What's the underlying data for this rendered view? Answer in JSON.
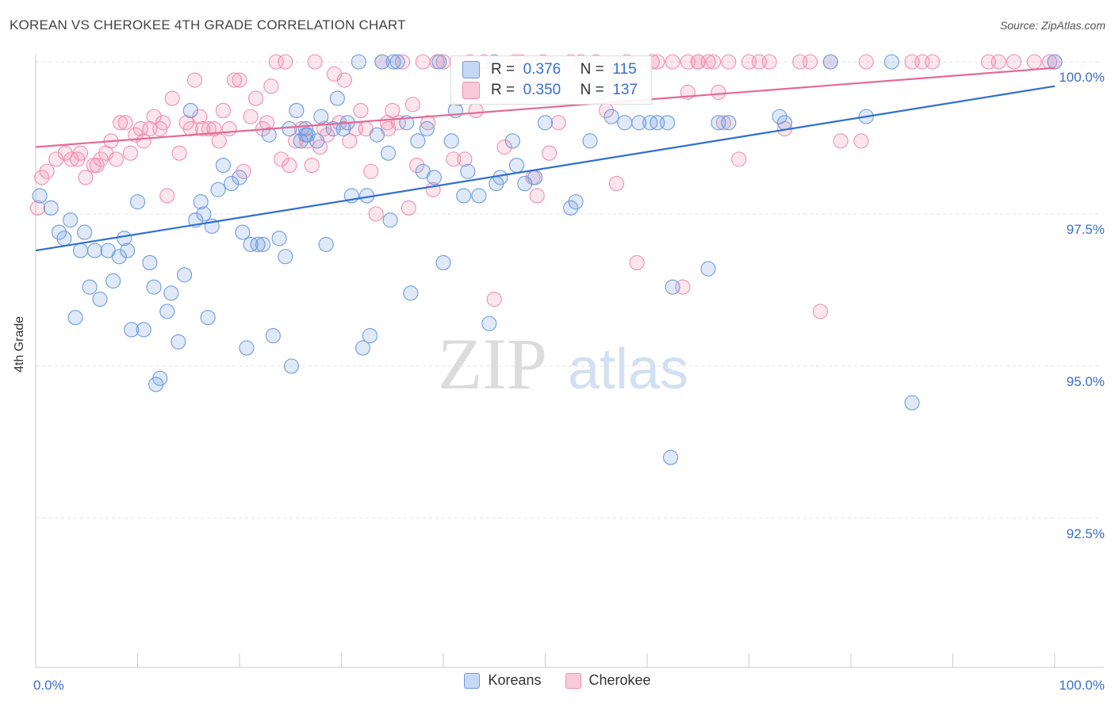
{
  "title": "KOREAN VS CHEROKEE 4TH GRADE CORRELATION CHART",
  "source": "Source: ZipAtlas.com",
  "watermark": {
    "zip": "ZIP",
    "atlas": "atlas"
  },
  "colors": {
    "koreans": "#6f9be0",
    "cherokee": "#f08fae",
    "koreans_line": "#2f6fd0",
    "cherokee_line": "#e36a93",
    "tick_label": "#3a6fd0"
  },
  "legend": {
    "items": [
      {
        "label": "Koreans"
      },
      {
        "label": "Cherokee"
      }
    ]
  },
  "stats": {
    "koreans": {
      "r_label": "R =",
      "r_value": "0.376",
      "n_label": "N =",
      "n_value": "115"
    },
    "cherokee": {
      "r_label": "R =",
      "r_value": "0.350",
      "n_label": "N =",
      "n_value": "137"
    }
  },
  "chart_data": {
    "type": "scatter",
    "title": "KOREAN VS CHEROKEE 4TH GRADE CORRELATION CHART",
    "xlabel": "",
    "ylabel": "4th Grade",
    "xlim": [
      0,
      100
    ],
    "ylim": [
      90.2,
      100.4
    ],
    "x_tick_labels": [
      "0.0%",
      "100.0%"
    ],
    "y_ticks": [
      {
        "value": 100.0,
        "label": "100.0%"
      },
      {
        "value": 97.5,
        "label": "97.5%"
      },
      {
        "value": 95.0,
        "label": "95.0%"
      },
      {
        "value": 92.5,
        "label": "92.5%"
      }
    ],
    "grid": true,
    "legend_position": "bottom-center",
    "series": [
      {
        "name": "Koreans",
        "trend": [
          [
            0,
            96.9
          ],
          [
            100,
            99.6
          ]
        ],
        "points": [
          [
            0.4,
            97.8
          ],
          [
            1.5,
            97.6
          ],
          [
            2.3,
            97.2
          ],
          [
            2.8,
            97.1
          ],
          [
            3.4,
            97.4
          ],
          [
            3.9,
            95.8
          ],
          [
            4.4,
            96.9
          ],
          [
            4.8,
            97.2
          ],
          [
            5.3,
            96.3
          ],
          [
            5.8,
            96.9
          ],
          [
            6.3,
            96.1
          ],
          [
            7.1,
            96.9
          ],
          [
            7.6,
            96.4
          ],
          [
            8.2,
            96.8
          ],
          [
            8.7,
            97.1
          ],
          [
            9.0,
            96.9
          ],
          [
            9.4,
            95.6
          ],
          [
            10.0,
            97.7
          ],
          [
            10.6,
            95.6
          ],
          [
            11.2,
            96.7
          ],
          [
            11.6,
            96.3
          ],
          [
            11.8,
            94.7
          ],
          [
            12.2,
            94.8
          ],
          [
            12.9,
            95.9
          ],
          [
            13.3,
            96.2
          ],
          [
            14.0,
            95.4
          ],
          [
            14.6,
            96.5
          ],
          [
            15.2,
            99.2
          ],
          [
            15.7,
            97.4
          ],
          [
            16.2,
            97.7
          ],
          [
            16.5,
            97.5
          ],
          [
            16.9,
            95.8
          ],
          [
            17.3,
            97.3
          ],
          [
            17.9,
            97.9
          ],
          [
            18.4,
            98.3
          ],
          [
            19.2,
            98.0
          ],
          [
            20.0,
            98.1
          ],
          [
            20.3,
            97.2
          ],
          [
            20.7,
            95.3
          ],
          [
            21.1,
            97.0
          ],
          [
            21.8,
            97.0
          ],
          [
            22.3,
            97.0
          ],
          [
            22.9,
            98.8
          ],
          [
            23.3,
            95.5
          ],
          [
            23.9,
            97.1
          ],
          [
            24.5,
            96.8
          ],
          [
            24.9,
            98.9
          ],
          [
            25.1,
            95.0
          ],
          [
            25.6,
            99.2
          ],
          [
            26.0,
            98.7
          ],
          [
            26.5,
            98.9
          ],
          [
            26.7,
            98.8
          ],
          [
            27.6,
            98.7
          ],
          [
            28.0,
            99.1
          ],
          [
            28.5,
            97.0
          ],
          [
            29.2,
            98.9
          ],
          [
            29.6,
            99.4
          ],
          [
            30.2,
            98.9
          ],
          [
            30.6,
            99.0
          ],
          [
            31.0,
            97.8
          ],
          [
            31.7,
            100.0
          ],
          [
            32.1,
            95.3
          ],
          [
            32.5,
            97.8
          ],
          [
            32.8,
            95.5
          ],
          [
            33.5,
            98.8
          ],
          [
            34.0,
            100.0
          ],
          [
            34.6,
            98.5
          ],
          [
            34.8,
            97.4
          ],
          [
            35.1,
            100.0
          ],
          [
            36.4,
            99.0
          ],
          [
            36.8,
            96.2
          ],
          [
            37.5,
            98.7
          ],
          [
            38.0,
            98.2
          ],
          [
            38.4,
            98.9
          ],
          [
            39.1,
            98.1
          ],
          [
            39.6,
            100.0
          ],
          [
            40.0,
            96.7
          ],
          [
            40.8,
            98.7
          ],
          [
            41.2,
            99.2
          ],
          [
            42.0,
            97.8
          ],
          [
            42.4,
            98.2
          ],
          [
            43.5,
            97.8
          ],
          [
            44.5,
            95.7
          ],
          [
            45.2,
            98.0
          ],
          [
            45.6,
            98.1
          ],
          [
            46.8,
            98.7
          ],
          [
            47.2,
            98.3
          ],
          [
            48.0,
            98.0
          ],
          [
            49.0,
            98.1
          ],
          [
            50.0,
            99.0
          ],
          [
            52.5,
            97.6
          ],
          [
            53.0,
            97.7
          ],
          [
            54.4,
            98.7
          ],
          [
            55.5,
            99.5
          ],
          [
            56.5,
            99.1
          ],
          [
            57.8,
            99.0
          ],
          [
            59.2,
            99.0
          ],
          [
            60.3,
            99.0
          ],
          [
            61.0,
            99.0
          ],
          [
            62.0,
            99.0
          ],
          [
            62.3,
            93.5
          ],
          [
            62.5,
            96.3
          ],
          [
            66.0,
            96.6
          ],
          [
            67.0,
            99.0
          ],
          [
            68.0,
            99.0
          ],
          [
            73.0,
            99.1
          ],
          [
            73.5,
            99.0
          ],
          [
            78.0,
            100.0
          ],
          [
            81.5,
            99.1
          ],
          [
            84.0,
            100.0
          ],
          [
            86.0,
            94.4
          ],
          [
            100.0,
            100.0
          ],
          [
            45.0,
            100.0
          ],
          [
            35.5,
            100.0
          ],
          [
            26.5,
            98.8
          ]
        ]
      },
      {
        "name": "Cherokee",
        "trend": [
          [
            0,
            98.6
          ],
          [
            100,
            99.9
          ]
        ],
        "points": [
          [
            0.2,
            97.6
          ],
          [
            0.6,
            98.1
          ],
          [
            1.1,
            98.2
          ],
          [
            2.0,
            98.4
          ],
          [
            2.9,
            98.5
          ],
          [
            3.5,
            98.4
          ],
          [
            4.1,
            98.4
          ],
          [
            4.4,
            98.5
          ],
          [
            4.9,
            98.1
          ],
          [
            5.7,
            98.3
          ],
          [
            6.0,
            98.3
          ],
          [
            6.4,
            98.4
          ],
          [
            6.9,
            98.5
          ],
          [
            7.4,
            98.7
          ],
          [
            7.9,
            98.4
          ],
          [
            8.3,
            99.0
          ],
          [
            8.8,
            99.0
          ],
          [
            9.3,
            98.5
          ],
          [
            9.8,
            98.8
          ],
          [
            10.3,
            98.9
          ],
          [
            10.6,
            98.7
          ],
          [
            11.2,
            98.9
          ],
          [
            11.6,
            99.1
          ],
          [
            12.2,
            98.9
          ],
          [
            12.5,
            99.0
          ],
          [
            12.9,
            97.8
          ],
          [
            13.4,
            99.4
          ],
          [
            14.1,
            98.5
          ],
          [
            14.8,
            99.0
          ],
          [
            15.2,
            98.9
          ],
          [
            15.6,
            99.7
          ],
          [
            16.1,
            99.1
          ],
          [
            16.4,
            98.9
          ],
          [
            17.0,
            98.9
          ],
          [
            17.5,
            98.9
          ],
          [
            18.0,
            98.7
          ],
          [
            18.4,
            99.2
          ],
          [
            19.0,
            98.9
          ],
          [
            19.5,
            99.7
          ],
          [
            20.0,
            99.7
          ],
          [
            20.4,
            98.2
          ],
          [
            21.1,
            99.1
          ],
          [
            21.6,
            99.4
          ],
          [
            22.3,
            98.9
          ],
          [
            22.7,
            99.0
          ],
          [
            23.1,
            99.6
          ],
          [
            23.6,
            100.0
          ],
          [
            24.1,
            98.4
          ],
          [
            24.5,
            100.0
          ],
          [
            24.9,
            98.3
          ],
          [
            25.5,
            98.7
          ],
          [
            26.1,
            98.9
          ],
          [
            26.6,
            98.7
          ],
          [
            27.1,
            98.3
          ],
          [
            27.4,
            100.0
          ],
          [
            27.9,
            98.6
          ],
          [
            28.3,
            98.9
          ],
          [
            28.6,
            98.8
          ],
          [
            29.3,
            99.8
          ],
          [
            29.8,
            99.0
          ],
          [
            30.3,
            99.7
          ],
          [
            30.8,
            98.7
          ],
          [
            31.4,
            98.9
          ],
          [
            31.9,
            99.2
          ],
          [
            32.4,
            98.9
          ],
          [
            32.9,
            98.2
          ],
          [
            33.4,
            97.5
          ],
          [
            34.0,
            100.0
          ],
          [
            34.5,
            99.0
          ],
          [
            35.0,
            99.2
          ],
          [
            35.6,
            99.0
          ],
          [
            36.0,
            100.0
          ],
          [
            36.6,
            97.6
          ],
          [
            37.0,
            99.3
          ],
          [
            37.4,
            98.3
          ],
          [
            38.0,
            100.0
          ],
          [
            38.5,
            99.0
          ],
          [
            39.0,
            97.9
          ],
          [
            39.4,
            100.0
          ],
          [
            40.0,
            100.0
          ],
          [
            41.0,
            98.4
          ],
          [
            41.5,
            99.4
          ],
          [
            42.1,
            98.4
          ],
          [
            42.6,
            100.0
          ],
          [
            43.2,
            99.2
          ],
          [
            44.0,
            100.0
          ],
          [
            45.0,
            96.1
          ],
          [
            46.0,
            98.6
          ],
          [
            47.0,
            100.0
          ],
          [
            47.6,
            100.0
          ],
          [
            48.8,
            98.1
          ],
          [
            49.2,
            97.8
          ],
          [
            49.8,
            100.0
          ],
          [
            50.4,
            98.5
          ],
          [
            51.3,
            99.0
          ],
          [
            52.5,
            100.0
          ],
          [
            53.5,
            100.0
          ],
          [
            55.0,
            100.0
          ],
          [
            56.0,
            99.2
          ],
          [
            57.0,
            98.0
          ],
          [
            58.0,
            100.0
          ],
          [
            59.0,
            96.7
          ],
          [
            60.5,
            100.0
          ],
          [
            61.0,
            100.0
          ],
          [
            62.5,
            100.0
          ],
          [
            63.5,
            96.3
          ],
          [
            64.0,
            99.5
          ],
          [
            65.0,
            100.0
          ],
          [
            66.0,
            100.0
          ],
          [
            67.0,
            99.5
          ],
          [
            68.0,
            100.0
          ],
          [
            69.0,
            98.4
          ],
          [
            70.0,
            100.0
          ],
          [
            71.0,
            100.0
          ],
          [
            72.0,
            100.0
          ],
          [
            73.5,
            98.9
          ],
          [
            75.0,
            100.0
          ],
          [
            76.0,
            100.0
          ],
          [
            77.0,
            95.9
          ],
          [
            78.0,
            100.0
          ],
          [
            79.0,
            98.7
          ],
          [
            81.0,
            98.7
          ],
          [
            81.5,
            100.0
          ],
          [
            86.0,
            100.0
          ],
          [
            87.0,
            100.0
          ],
          [
            88.0,
            100.0
          ],
          [
            93.5,
            100.0
          ],
          [
            94.5,
            100.0
          ],
          [
            96.0,
            100.0
          ],
          [
            98.0,
            100.0
          ],
          [
            99.5,
            100.0
          ],
          [
            100.0,
            100.0
          ],
          [
            65.0,
            100.0
          ],
          [
            66.5,
            100.0
          ],
          [
            64.0,
            100.0
          ],
          [
            67.5,
            99.0
          ],
          [
            34.6,
            98.9
          ]
        ]
      }
    ]
  }
}
